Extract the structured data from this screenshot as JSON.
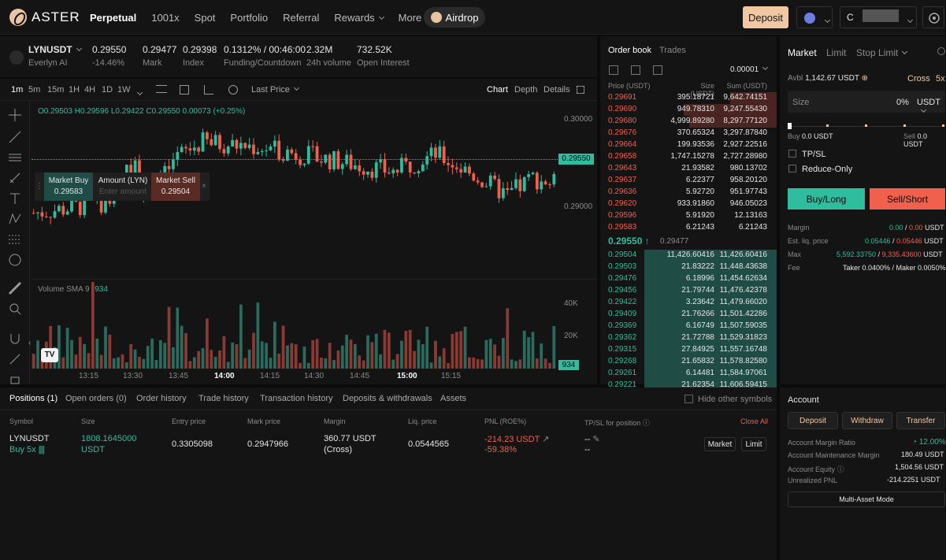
{
  "nav": {
    "brand": "ASTER",
    "menu": [
      {
        "label": "Perpetual",
        "active": true
      },
      {
        "label": "1001x"
      },
      {
        "label": "Spot"
      },
      {
        "label": "Portfolio"
      },
      {
        "label": "Referral"
      },
      {
        "label": "Rewards",
        "dropdown": true
      },
      {
        "label": "More",
        "dropdown": true
      }
    ],
    "airdrop": "Airdrop",
    "deposit": "Deposit",
    "wallet_prefix": "C"
  },
  "ticker": {
    "symbol": "LYNUSDT",
    "name": "Everlyn AI",
    "price": "0.29550",
    "change": "-14.46%",
    "mark": "0.29477",
    "mark_label": "Mark",
    "index": "0.29398",
    "index_label": "Index",
    "funding": "0.1312% / 00:46:00",
    "funding_label": "Funding/Countdown",
    "volume": "2.32M",
    "volume_label": "24h volume",
    "oi": "732.52K",
    "oi_label": "Open Interest"
  },
  "chart": {
    "timeframes": [
      "1m",
      "5m",
      "15m",
      "1H",
      "4H",
      "1D",
      "1W"
    ],
    "active_tf": "1m",
    "price_type": "Last Price",
    "views": [
      "Chart",
      "Depth",
      "Details"
    ],
    "ohlc": {
      "o": "O0.29503",
      "h": "H0.29596",
      "l": "L0.29422",
      "c": "C0.29550",
      "chg": "0.00073 (+0.25%)"
    },
    "price_ticks": [
      "0.30000",
      "0.29000"
    ],
    "current_price": "0.29550",
    "volume_label": "Volume SMA 9",
    "volume_value": "934",
    "volume_ticks": [
      "40K",
      "20K"
    ],
    "volume_current": "934",
    "time_ticks": [
      "13:15",
      "13:30",
      "13:45",
      "14:00",
      "14:15",
      "14:30",
      "14:45",
      "15:00",
      "15:15"
    ],
    "quick_order": {
      "buy_label": "Market Buy",
      "buy_price": "0.29583",
      "amount_label": "Amount (LYN)",
      "amount_placeholder": "Enter amount",
      "sell_label": "Market Sell",
      "sell_price": "0.29504"
    }
  },
  "chart_data": {
    "type": "candlestick",
    "title": "",
    "ylim": [
      0.2875,
      0.3025
    ],
    "volume_ylim": [
      0,
      52000
    ]
  },
  "orderbook": {
    "tabs": [
      "Order book",
      "Trades"
    ],
    "precision": "0.00001",
    "cols": [
      "Price (USDT)",
      "Size (USDT)",
      "Sum (USDT)"
    ],
    "asks": [
      {
        "p": "0.29691",
        "s": "395.18721",
        "t": "9,642.74151",
        "d": 0.35
      },
      {
        "p": "0.29690",
        "s": "949.78310",
        "t": "9,247.55430",
        "d": 0.7
      },
      {
        "p": "0.29680",
        "s": "4,999.89280",
        "t": "8,297.77120",
        "d": 0.66
      },
      {
        "p": "0.29676",
        "s": "370.65324",
        "t": "3,297.87840",
        "d": 0.0
      },
      {
        "p": "0.29664",
        "s": "199.93536",
        "t": "2,927.22516",
        "d": 0.0
      },
      {
        "p": "0.29658",
        "s": "1,747.15278",
        "t": "2,727.28980",
        "d": 0.0
      },
      {
        "p": "0.29643",
        "s": "21.93582",
        "t": "980.13702",
        "d": 0.0
      },
      {
        "p": "0.29637",
        "s": "6.22377",
        "t": "958.20120",
        "d": 0.0
      },
      {
        "p": "0.29636",
        "s": "5.92720",
        "t": "951.97743",
        "d": 0.0
      },
      {
        "p": "0.29620",
        "s": "933.91860",
        "t": "946.05023",
        "d": 0.0
      },
      {
        "p": "0.29596",
        "s": "5.91920",
        "t": "12.13163",
        "d": 0.0
      },
      {
        "p": "0.29583",
        "s": "6.21243",
        "t": "6.21243",
        "d": 0.0
      }
    ],
    "last": "0.29550",
    "last_mark": "0.29477",
    "bids": [
      {
        "p": "0.29504",
        "s": "11,426.60416",
        "t": "11,426.60416"
      },
      {
        "p": "0.29503",
        "s": "21.83222",
        "t": "11,448.43638"
      },
      {
        "p": "0.29476",
        "s": "6.18996",
        "t": "11,454.62634"
      },
      {
        "p": "0.29456",
        "s": "21.79744",
        "t": "11,476.42378"
      },
      {
        "p": "0.29422",
        "s": "3.23642",
        "t": "11,479.66020"
      },
      {
        "p": "0.29409",
        "s": "21.76266",
        "t": "11,501.42286"
      },
      {
        "p": "0.29369",
        "s": "6.16749",
        "t": "11,507.59035"
      },
      {
        "p": "0.29362",
        "s": "21.72788",
        "t": "11,529.31823"
      },
      {
        "p": "0.29315",
        "s": "27.84925",
        "t": "11,557.16748"
      },
      {
        "p": "0.29268",
        "s": "21.65832",
        "t": "11,578.82580"
      },
      {
        "p": "0.29261",
        "s": "6.14481",
        "t": "11,584.97061"
      },
      {
        "p": "0.29221",
        "s": "21.62354",
        "t": "11,606.59415"
      }
    ]
  },
  "trade": {
    "tabs": [
      "Market",
      "Limit",
      "Stop Limit"
    ],
    "avbl_label": "Avbl",
    "avbl": "1,142.67 USDT",
    "margin_mode": "Cross",
    "leverage": "5x",
    "size_label": "Size",
    "size_pct": "0%",
    "size_unit": "USDT",
    "buy_label": "Buy",
    "buy_amt": "0.0 USDT",
    "sell_label": "Sell",
    "sell_amt": "0.0 USDT",
    "tpsl": "TP/SL",
    "reduce": "Reduce-Only",
    "buy_btn": "Buy/Long",
    "sell_btn": "Sell/Short",
    "margin_label": "Margin",
    "margin_buy": "0.00",
    "margin_sell": "0.00",
    "margin_unit": "USDT",
    "liq_label": "Est. liq. price",
    "liq_buy": "0.05446",
    "liq_sell": "0.05446",
    "liq_unit": "USDT",
    "max_label": "Max",
    "max_buy": "5,592.33750",
    "max_sell": "9,335.43600",
    "max_unit": "USDT",
    "fee_label": "Fee",
    "fee_value": "Taker 0.0400% / Maker 0.0050%"
  },
  "positions": {
    "tabs": [
      "Positions (1)",
      "Open orders (0)",
      "Order history",
      "Trade history",
      "Transaction history",
      "Deposits & withdrawals",
      "Assets"
    ],
    "hide_other": "Hide other symbols",
    "cols": [
      "Symbol",
      "Size",
      "Entry price",
      "Mark price",
      "Margin",
      "Liq. price",
      "PNL (ROE%)",
      "TP/SL for position"
    ],
    "close_all": "Close All",
    "row": {
      "symbol": "LYNUSDT",
      "side": "Buy 5x",
      "size": "1808.1645000",
      "size_unit": "USDT",
      "entry": "0.3305098",
      "mark": "0.2947966",
      "margin": "360.77 USDT",
      "margin_mode": "(Cross)",
      "liq": "0.0544565",
      "pnl": "-214.23 USDT",
      "roe": "-59.38%",
      "tp": "--",
      "sl": "--",
      "market_btn": "Market",
      "limit_btn": "Limit"
    }
  },
  "account": {
    "title": "Account",
    "deposit": "Deposit",
    "withdraw": "Withdraw",
    "transfer": "Transfer",
    "margin_ratio_label": "Account Margin Ratio",
    "margin_ratio": "12.00%",
    "maint_label": "Account Maintenance Margin",
    "maint": "180.49 USDT",
    "equity_label": "Account Equity",
    "equity": "1,504.56 USDT",
    "upnl_label": "Unrealized PNL",
    "upnl": "-214.2251 USDT",
    "multi": "Multi-Asset Mode"
  },
  "colors": {
    "up": "#2ebd9f",
    "down": "#f0604d",
    "accent": "#f2c8a3",
    "bg": "#141414"
  }
}
